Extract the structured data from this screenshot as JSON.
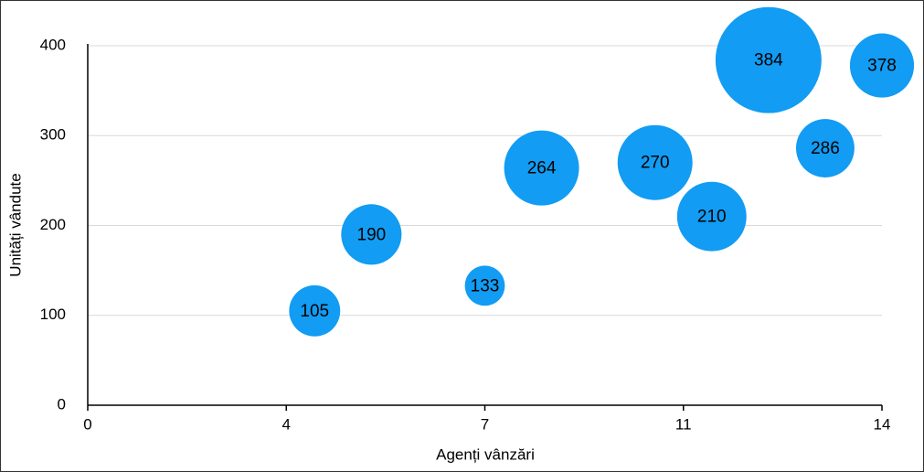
{
  "chart_data": {
    "type": "bubble",
    "x_label": "Agenți vânzări",
    "y_label": "Unități vândute",
    "series": [
      {
        "color": "#129cf3",
        "x": [
          4,
          5,
          7,
          8,
          10,
          11,
          12,
          13,
          14
        ],
        "values": [
          105,
          190,
          133,
          264,
          270,
          210,
          384,
          286,
          378
        ],
        "sizes": [
          7.8,
          10.9,
          4.8,
          16.8,
          16.8,
          14.4,
          33.6,
          10.2,
          12.3
        ]
      }
    ],
    "xlim": [
      0,
      14
    ],
    "xticks": [
      0,
      {
        "value": 3.5,
        "label": "4"
      },
      7,
      {
        "value": 10.5,
        "label": "11"
      },
      14
    ],
    "ylim": [
      0,
      400
    ],
    "yticks": [
      0,
      100,
      200,
      300,
      400
    ],
    "grid": true
  }
}
